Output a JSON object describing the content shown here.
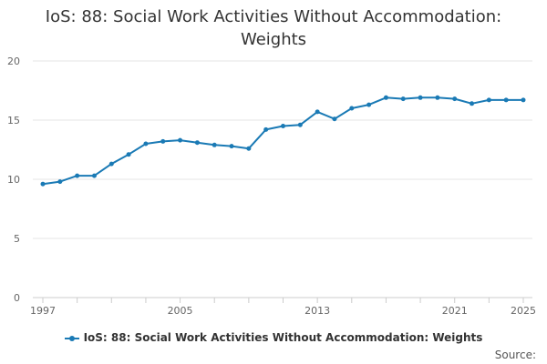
{
  "chart_data": {
    "type": "line",
    "title": "IoS: 88: Social Work Activities Without Accommodation: Weights",
    "xlabel": "",
    "ylabel": "",
    "x": [
      1997,
      1998,
      1999,
      2000,
      2001,
      2002,
      2003,
      2004,
      2005,
      2006,
      2007,
      2008,
      2009,
      2010,
      2011,
      2012,
      2013,
      2014,
      2015,
      2016,
      2017,
      2018,
      2019,
      2020,
      2021,
      2022,
      2023,
      2024,
      2025
    ],
    "series": [
      {
        "name": "IoS: 88: Social Work Activities Without Accommodation: Weights",
        "values": [
          9.6,
          9.8,
          10.3,
          10.3,
          11.3,
          12.1,
          13.0,
          13.2,
          13.3,
          13.1,
          12.9,
          12.8,
          12.6,
          14.2,
          14.5,
          14.6,
          15.7,
          15.1,
          16.0,
          16.3,
          16.9,
          16.8,
          16.9,
          16.9,
          16.8,
          16.4,
          16.7,
          16.7,
          16.7
        ]
      }
    ],
    "xlim": [
      1997,
      2025
    ],
    "ylim": [
      0,
      20
    ],
    "yticks": [
      0,
      5,
      10,
      15,
      20
    ],
    "xtick_labels": [
      1997,
      2005,
      2013,
      2021,
      2025
    ],
    "grid": "horizontal",
    "legend": "bottom",
    "color": "#1a7ab5"
  },
  "source_label": "Source:"
}
